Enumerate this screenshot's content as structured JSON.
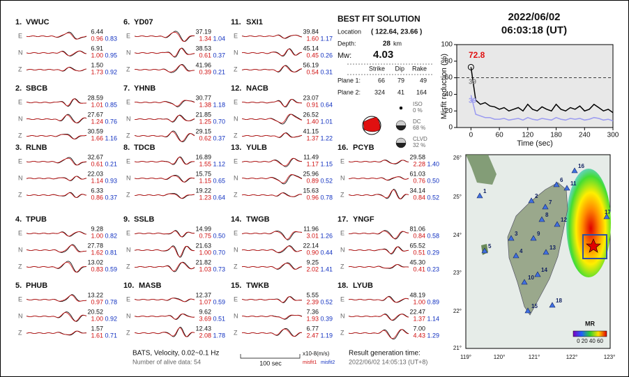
{
  "components": [
    "E",
    "N",
    "Z"
  ],
  "stations": [
    {
      "id": "1.",
      "name": "VWUC",
      "traces": [
        [
          "6.44",
          "0.96",
          "0.83"
        ],
        [
          "6.91",
          "1.00",
          "0.95"
        ],
        [
          "1.50",
          "1.73",
          "0.92"
        ]
      ]
    },
    {
      "id": "2.",
      "name": "SBCB",
      "traces": [
        [
          "28.59",
          "1.01",
          "0.85"
        ],
        [
          "27.67",
          "1.24",
          "0.76"
        ],
        [
          "30.59",
          "1.66",
          "1.16"
        ]
      ]
    },
    {
      "id": "3.",
      "name": "RLNB",
      "traces": [
        [
          "32.67",
          "0.61",
          "0.21"
        ],
        [
          "22.03",
          "1.14",
          "0.93"
        ],
        [
          "6.33",
          "0.86",
          "0.37"
        ]
      ]
    },
    {
      "id": "4.",
      "name": "TPUB",
      "traces": [
        [
          "9.28",
          "1.00",
          "0.82"
        ],
        [
          "27.78",
          "1.62",
          "0.81"
        ],
        [
          "13.02",
          "0.83",
          "0.59"
        ]
      ]
    },
    {
      "id": "5.",
      "name": "PHUB",
      "traces": [
        [
          "13.22",
          "0.97",
          "0.78"
        ],
        [
          "20.52",
          "1.00",
          "0.92"
        ],
        [
          "1.57",
          "1.61",
          "0.71"
        ]
      ]
    },
    {
      "id": "6.",
      "name": "YD07",
      "traces": [
        [
          "37.19",
          "1.34",
          "1.04"
        ],
        [
          "38.53",
          "0.61",
          "0.37"
        ],
        [
          "41.96",
          "0.39",
          "0.21"
        ]
      ]
    },
    {
      "id": "7.",
      "name": "YHNB",
      "traces": [
        [
          "30.77",
          "1.38",
          "1.18"
        ],
        [
          "21.85",
          "1.25",
          "0.70"
        ],
        [
          "29.15",
          "0.62",
          "0.37"
        ]
      ]
    },
    {
      "id": "8.",
      "name": "TDCB",
      "traces": [
        [
          "16.89",
          "1.55",
          "1.12"
        ],
        [
          "15.75",
          "1.15",
          "0.65"
        ],
        [
          "19.22",
          "1.23",
          "0.64"
        ]
      ]
    },
    {
      "id": "9.",
      "name": "SSLB",
      "traces": [
        [
          "14.99",
          "0.75",
          "0.50"
        ],
        [
          "21.63",
          "1.00",
          "0.70"
        ],
        [
          "21.82",
          "1.03",
          "0.73"
        ]
      ]
    },
    {
      "id": "10.",
      "name": "MASB",
      "traces": [
        [
          "12.37",
          "1.07",
          "0.59"
        ],
        [
          "9.62",
          "3.69",
          "0.51"
        ],
        [
          "12.43",
          "2.08",
          "1.78"
        ]
      ]
    },
    {
      "id": "11.",
      "name": "SXI1",
      "traces": [
        [
          "39.84",
          "1.60",
          "1.17"
        ],
        [
          "45.14",
          "0.45",
          "0.26"
        ],
        [
          "56.19",
          "0.54",
          "0.31"
        ]
      ]
    },
    {
      "id": "12.",
      "name": "NACB",
      "traces": [
        [
          "23.07",
          "0.91",
          "0.64"
        ],
        [
          "26.52",
          "1.40",
          "1.01"
        ],
        [
          "41.15",
          "1.37",
          "1.22"
        ]
      ]
    },
    {
      "id": "13.",
      "name": "YULB",
      "traces": [
        [
          "11.49",
          "1.17",
          "1.15"
        ],
        [
          "25.96",
          "0.89",
          "0.52"
        ],
        [
          "15.63",
          "0.96",
          "0.78"
        ]
      ]
    },
    {
      "id": "14.",
      "name": "TWGB",
      "traces": [
        [
          "11.96",
          "3.01",
          "1.26"
        ],
        [
          "22.14",
          "0.90",
          "0.44"
        ],
        [
          "9.25",
          "2.02",
          "1.41"
        ]
      ]
    },
    {
      "id": "15.",
      "name": "TWKB",
      "traces": [
        [
          "5.55",
          "2.39",
          "0.52"
        ],
        [
          "7.36",
          "1.93",
          "0.39"
        ],
        [
          "6.77",
          "2.47",
          "1.19"
        ]
      ]
    },
    {
      "id": "16.",
      "name": "PCYB",
      "traces": [
        [
          "29.58",
          "2.28",
          "1.40"
        ],
        [
          "61.03",
          "0.76",
          "0.50"
        ],
        [
          "34.14",
          "0.84",
          "0.52"
        ]
      ]
    },
    {
      "id": "17.",
      "name": "YNGF",
      "traces": [
        [
          "81.06",
          "0.84",
          "0.58"
        ],
        [
          "65.52",
          "0.51",
          "0.29"
        ],
        [
          "45.30",
          "0.41",
          "0.23"
        ]
      ]
    },
    {
      "id": "18.",
      "name": "LYUB",
      "traces": [
        [
          "48.19",
          "1.00",
          "0.89"
        ],
        [
          "22.47",
          "1.37",
          "1.14"
        ],
        [
          "7.00",
          "4.43",
          "1.29"
        ]
      ]
    }
  ],
  "solution": {
    "title": "BEST FIT SOLUTION",
    "location_label": "Location",
    "location": "( 122.64, 23.66 )",
    "depth_label": "Depth:",
    "depth": "28",
    "depth_unit": "km",
    "mw_label": "Mw:",
    "mw": "4.03",
    "columns": [
      "Strike",
      "Dip",
      "Rake"
    ],
    "planes": [
      {
        "label": "Plane 1:",
        "values": [
          "66",
          "79",
          "49"
        ]
      },
      {
        "label": "Plane 2:",
        "values": [
          "324",
          "41",
          "164"
        ]
      }
    ],
    "components": [
      {
        "name": "ISO",
        "value": "0 %"
      },
      {
        "name": "DC",
        "value": "68 %"
      },
      {
        "name": "CLVD",
        "value": "32 %"
      }
    ]
  },
  "header": {
    "date": "2022/06/02",
    "time": "06:03:18  (UT)"
  },
  "misfit_chart": {
    "type": "line",
    "y_label": "Misfit reduction (%)",
    "x_label": "Time (sec)",
    "x": [
      0,
      10,
      20,
      30,
      40,
      50,
      60,
      70,
      80,
      90,
      100,
      110,
      120,
      130,
      140,
      150,
      160,
      170,
      180,
      190,
      200,
      210,
      220,
      230,
      240,
      250,
      260,
      270,
      280,
      290,
      300
    ],
    "series": [
      {
        "name": "misfit1",
        "color": "#000000",
        "values": [
          72.8,
          33,
          28,
          30,
          26,
          25,
          22,
          24,
          20,
          22,
          24,
          20,
          28,
          22,
          20,
          25,
          22,
          20,
          28,
          22,
          20,
          24,
          22,
          26,
          20,
          22,
          28,
          24,
          20,
          22,
          18
        ]
      },
      {
        "name": "misfit2",
        "color": "#9a9af0",
        "values": [
          39,
          16,
          14,
          12,
          12,
          10,
          10,
          11,
          9,
          10,
          11,
          9,
          12,
          10,
          9,
          11,
          10,
          9,
          12,
          10,
          9,
          11,
          10,
          11,
          9,
          10,
          12,
          11,
          9,
          10,
          8
        ]
      }
    ],
    "xlim": [
      -30,
      300
    ],
    "ylim": [
      0,
      100
    ],
    "xticks": [
      0,
      60,
      120,
      180,
      240,
      300
    ],
    "yticks": [
      0,
      20,
      40,
      60,
      80,
      100
    ],
    "threshold": 60,
    "annotations": [
      "72.8",
      "39",
      "39"
    ]
  },
  "map": {
    "lat_ticks": [
      "26°",
      "25°",
      "24°",
      "23°",
      "22°",
      "21°"
    ],
    "lon_ticks": [
      "119°",
      "120°",
      "121°",
      "122°",
      "123°"
    ],
    "station_labels": [
      "1",
      "2",
      "3",
      "4",
      "5",
      "6",
      "7",
      "8",
      "9",
      "10",
      "11",
      "12",
      "13",
      "14",
      "15",
      "16",
      "17",
      "18"
    ],
    "colorbar_title": "MR",
    "colorbar_labels": "0 20 40 60"
  },
  "footer": {
    "info": "BATS, Velocity, 0.02~0.1 Hz",
    "alive": "Number of alive data: 54",
    "scale": "100 sec",
    "units": "x10-8(m/s)",
    "misfit1": "misfit1",
    "misfit2": "misfit2",
    "gen_label": "Result generation time:",
    "gen_time": "2022/06/02 14:05:13 (UT+8)"
  }
}
